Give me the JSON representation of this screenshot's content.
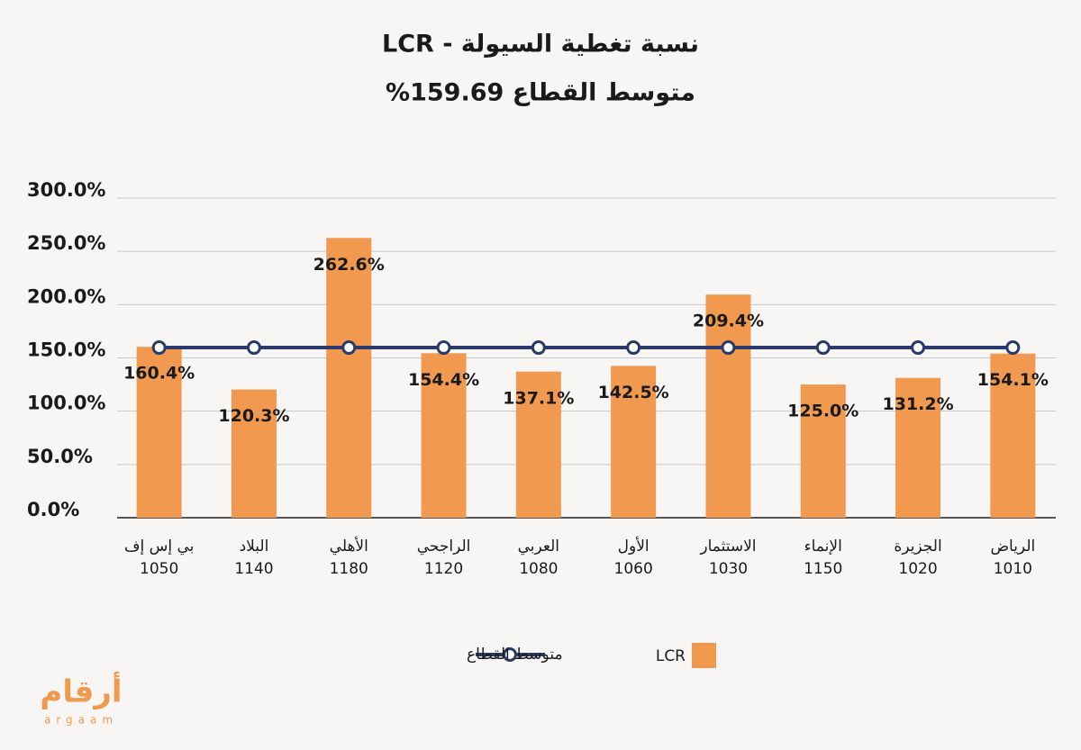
{
  "chart_data": {
    "type": "bar",
    "title": "نسبة تغطية السيولة - LCR",
    "subtitle": "متوسط القطاع 159.69%",
    "categories": [
      "بي إس إف",
      "البلاد",
      "الأهلي",
      "الراجحي",
      "العربي",
      "الأول",
      "الاستثمار",
      "الإنماء",
      "الجزيرة",
      "الرياض"
    ],
    "category_codes": [
      "1050",
      "1140",
      "1180",
      "1120",
      "1080",
      "1060",
      "1030",
      "1150",
      "1020",
      "1010"
    ],
    "series": [
      {
        "name": "LCR",
        "type": "bar",
        "color": "#f0994f",
        "values": [
          160.4,
          120.3,
          262.6,
          154.4,
          137.1,
          142.5,
          209.4,
          125.0,
          131.2,
          154.1
        ],
        "value_labels": [
          "160.4%",
          "120.3%",
          "262.6%",
          "154.4%",
          "137.1%",
          "142.5%",
          "209.4%",
          "125.0%",
          "131.2%",
          "154.1%"
        ]
      },
      {
        "name": "متوسط القطاع",
        "type": "line",
        "color": "#2b3a6b",
        "values": [
          159.69,
          159.69,
          159.69,
          159.69,
          159.69,
          159.69,
          159.69,
          159.69,
          159.69,
          159.69
        ]
      }
    ],
    "ylim": [
      0,
      300
    ],
    "yticks": [
      {
        "value": 0,
        "label": "0.0%"
      },
      {
        "value": 50,
        "label": "50.0%"
      },
      {
        "value": 100,
        "label": "100.0%"
      },
      {
        "value": 150,
        "label": "150.0%"
      },
      {
        "value": 200,
        "label": "200.0%"
      },
      {
        "value": 250,
        "label": "250.0%"
      },
      {
        "value": 300,
        "label": "300.0%"
      }
    ],
    "grid": true,
    "legend": "bottom",
    "logo": {
      "name": "أرقام",
      "latin": "argaam"
    }
  }
}
